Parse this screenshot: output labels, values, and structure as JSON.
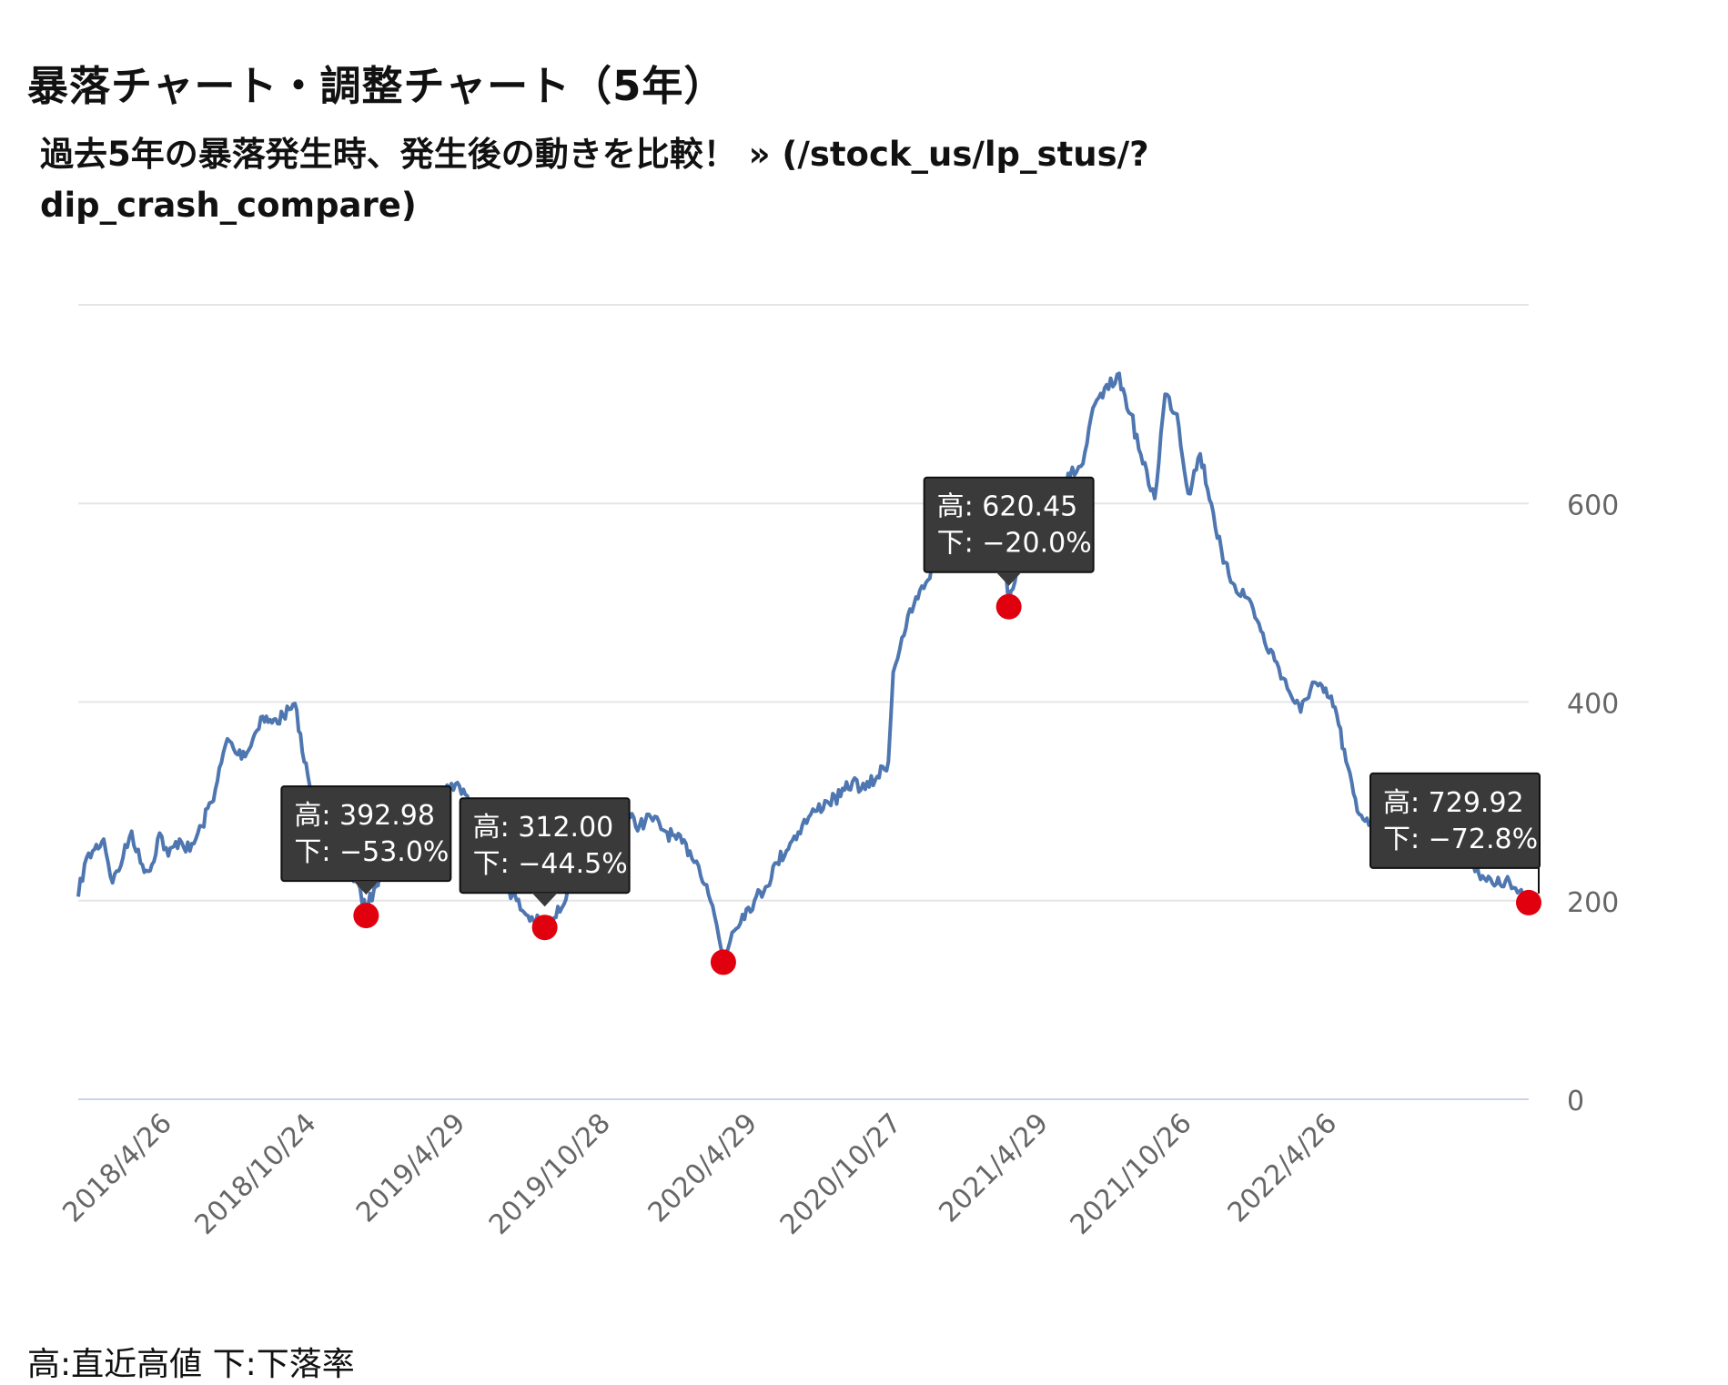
{
  "page": {
    "title": "暴落チャート・調整チャート（5年）",
    "subtitle": "過去5年の暴落発生時、発生後の動きを比較！ » (/stock_us/lp_stus/?dip_crash_compare)",
    "footer_note": "高:直近高値 下:下落率"
  },
  "chart_data": {
    "type": "line",
    "title": "",
    "xlabel": "",
    "ylabel": "",
    "ylim": [
      0,
      800
    ],
    "y_ticks": [
      0,
      200,
      400,
      600
    ],
    "x_ticks": [
      "2018/4/26",
      "2018/10/24",
      "2019/4/29",
      "2019/10/28",
      "2020/4/29",
      "2020/10/27",
      "2021/4/29",
      "2021/10/26",
      "2022/4/26"
    ],
    "x_range": [
      "2017/12/28",
      "2022/12/21"
    ],
    "grid": true,
    "legend": "none",
    "colors": {
      "line": "#4e76b0",
      "marker": "#e0000e",
      "tooltip_bg": "#3a3a3a",
      "tooltip_text": "#ffffff",
      "grid": "#e6e6e6",
      "axis": "#cfd3ea"
    },
    "series": [
      {
        "name": "",
        "points": [
          [
            "2017/12/28",
            204
          ],
          [
            "2018/1/5",
            237
          ],
          [
            "2018/1/15",
            250
          ],
          [
            "2018/1/29",
            262
          ],
          [
            "2018/2/9",
            218
          ],
          [
            "2018/2/22",
            243
          ],
          [
            "2018/3/5",
            270
          ],
          [
            "2018/3/16",
            238
          ],
          [
            "2018/3/28",
            230
          ],
          [
            "2018/4/9",
            268
          ],
          [
            "2018/4/20",
            245
          ],
          [
            "2018/5/4",
            262
          ],
          [
            "2018/5/17",
            250
          ],
          [
            "2018/6/1",
            275
          ],
          [
            "2018/6/18",
            312
          ],
          [
            "2018/7/3",
            363
          ],
          [
            "2018/7/16",
            347
          ],
          [
            "2018/7/30",
            352
          ],
          [
            "2018/8/14",
            385
          ],
          [
            "2018/8/28",
            379
          ],
          [
            "2018/9/11",
            386
          ],
          [
            "2018/9/21",
            393
          ],
          [
            "2018/9/28",
            392
          ],
          [
            "2018/10/5",
            350
          ],
          [
            "2018/10/19",
            300
          ],
          [
            "2018/11/2",
            262
          ],
          [
            "2018/11/16",
            240
          ],
          [
            "2018/12/3",
            232
          ],
          [
            "2018/12/14",
            218
          ],
          [
            "2018/12/24",
            188
          ],
          [
            "2019/1/3",
            212
          ],
          [
            "2019/1/18",
            240
          ],
          [
            "2019/2/4",
            262
          ],
          [
            "2019/2/20",
            280
          ],
          [
            "2019/3/8",
            292
          ],
          [
            "2019/3/25",
            302
          ],
          [
            "2019/4/10",
            318
          ],
          [
            "2019/4/25",
            312
          ],
          [
            "2019/5/10",
            286
          ],
          [
            "2019/5/24",
            262
          ],
          [
            "2019/6/7",
            232
          ],
          [
            "2019/6/21",
            212
          ],
          [
            "2019/7/8",
            190
          ],
          [
            "2019/7/22",
            180
          ],
          [
            "2019/8/5",
            175
          ],
          [
            "2019/8/19",
            183
          ],
          [
            "2019/9/3",
            212
          ],
          [
            "2019/9/17",
            246
          ],
          [
            "2019/10/1",
            266
          ],
          [
            "2019/10/16",
            272
          ],
          [
            "2019/11/1",
            279
          ],
          [
            "2019/11/15",
            285
          ],
          [
            "2019/12/2",
            276
          ],
          [
            "2019/12/16",
            284
          ],
          [
            "2020/1/3",
            270
          ],
          [
            "2020/1/17",
            262
          ],
          [
            "2020/2/3",
            250
          ],
          [
            "2020/2/14",
            235
          ],
          [
            "2020/2/24",
            216
          ],
          [
            "2020/3/5",
            185
          ],
          [
            "2020/3/16",
            140
          ],
          [
            "2020/3/27",
            168
          ],
          [
            "2020/4/9",
            186
          ],
          [
            "2020/4/24",
            200
          ],
          [
            "2020/5/8",
            214
          ],
          [
            "2020/5/22",
            238
          ],
          [
            "2020/6/8",
            258
          ],
          [
            "2020/6/23",
            276
          ],
          [
            "2020/7/9",
            290
          ],
          [
            "2020/7/24",
            300
          ],
          [
            "2020/8/10",
            305
          ],
          [
            "2020/8/25",
            320
          ],
          [
            "2020/9/10",
            312
          ],
          [
            "2020/9/25",
            325
          ],
          [
            "2020/10/9",
            340
          ],
          [
            "2020/10/15",
            430
          ],
          [
            "2020/10/26",
            465
          ],
          [
            "2020/11/10",
            498
          ],
          [
            "2020/11/25",
            520
          ],
          [
            "2020/12/10",
            548
          ],
          [
            "2020/12/28",
            562
          ],
          [
            "2021/1/15",
            590
          ],
          [
            "2021/2/1",
            620
          ],
          [
            "2021/2/16",
            606
          ],
          [
            "2021/3/1",
            560
          ],
          [
            "2021/3/9",
            496
          ],
          [
            "2021/3/22",
            540
          ],
          [
            "2021/4/7",
            590
          ],
          [
            "2021/4/22",
            615
          ],
          [
            "2021/5/10",
            612
          ],
          [
            "2021/5/25",
            628
          ],
          [
            "2021/6/10",
            640
          ],
          [
            "2021/6/25",
            700
          ],
          [
            "2021/7/12",
            715
          ],
          [
            "2021/7/23",
            730
          ],
          [
            "2021/8/9",
            690
          ],
          [
            "2021/8/24",
            640
          ],
          [
            "2021/9/8",
            605
          ],
          [
            "2021/9/21",
            710
          ],
          [
            "2021/10/6",
            690
          ],
          [
            "2021/10/20",
            610
          ],
          [
            "2021/11/4",
            650
          ],
          [
            "2021/11/18",
            600
          ],
          [
            "2021/12/3",
            540
          ],
          [
            "2021/12/17",
            518
          ],
          [
            "2022/1/7",
            500
          ],
          [
            "2022/1/24",
            460
          ],
          [
            "2022/2/8",
            440
          ],
          [
            "2022/2/24",
            410
          ],
          [
            "2022/3/10",
            390
          ],
          [
            "2022/3/25",
            420
          ],
          [
            "2022/4/8",
            410
          ],
          [
            "2022/4/22",
            395
          ],
          [
            "2022/5/6",
            340
          ],
          [
            "2022/5/20",
            290
          ],
          [
            "2022/6/6",
            280
          ],
          [
            "2022/6/21",
            265
          ],
          [
            "2022/7/8",
            252
          ],
          [
            "2022/7/22",
            268
          ],
          [
            "2022/8/8",
            280
          ],
          [
            "2022/8/22",
            270
          ],
          [
            "2022/9/7",
            265
          ],
          [
            "2022/9/23",
            255
          ],
          [
            "2022/10/10",
            242
          ],
          [
            "2022/10/24",
            225
          ],
          [
            "2022/11/8",
            215
          ],
          [
            "2022/11/22",
            220
          ],
          [
            "2022/12/7",
            208
          ],
          [
            "2022/12/21",
            198
          ]
        ]
      }
    ],
    "markers": [
      {
        "date": "2018/12/24",
        "value": 185,
        "label_high": "高: 392.98",
        "label_drop": "下: −53.0%"
      },
      {
        "date": "2019/8/5",
        "value": 173,
        "label_high": "高: 312.00",
        "label_drop": "下: −44.5%"
      },
      {
        "date": "2020/3/16",
        "value": 138,
        "label_high": "",
        "label_drop": ""
      },
      {
        "date": "2021/3/9",
        "value": 496,
        "label_high": "高: 620.45",
        "label_drop": "下: −20.0%"
      },
      {
        "date": "2022/12/21",
        "value": 198,
        "label_high": "高: 729.92",
        "label_drop": "下: −72.8%"
      }
    ]
  }
}
